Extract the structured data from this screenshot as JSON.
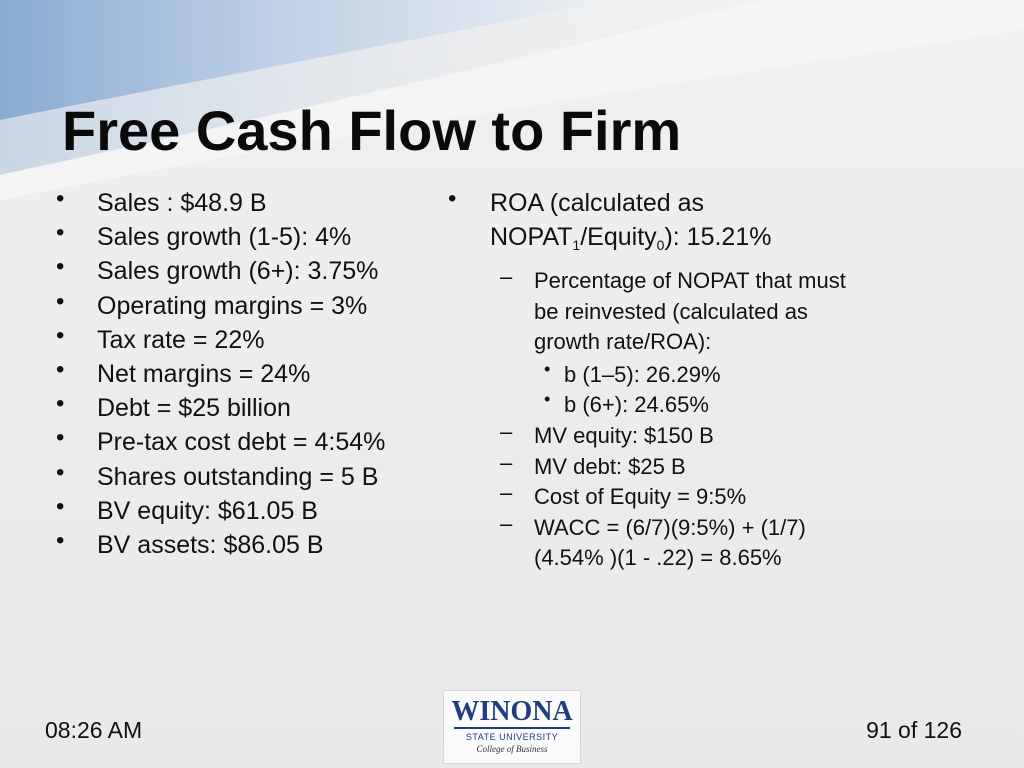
{
  "slide": {
    "title": "Free Cash Flow to Firm"
  },
  "left_bullets": [
    "Sales : $48.9 B",
    "Sales growth (1-5): 4%",
    "Sales growth (6+): 3.75%",
    "Operating margins = 3%",
    "Tax rate = 22%",
    "Net margins = 24%",
    "Debt = $25 billion",
    "Pre-tax cost debt = 4:54%",
    "Shares outstanding = 5 B",
    "BV equity: $61.05 B",
    "BV assets: $86.05 B"
  ],
  "right": {
    "roa_line1": "ROA (calculated as",
    "roa_nopat": "NOPAT",
    "roa_nopat_sub": "1",
    "roa_equity": "/Equity",
    "roa_equity_sub": "0",
    "roa_value": "): 15.21%",
    "reinvest": "Percentage of NOPAT that must be reinvested (calculated as growth rate/ROA):",
    "b_items": [
      "b (1–5): 26.29%",
      "b (6+): 24.65%"
    ],
    "other_items": [
      "MV equity: $150 B",
      "MV debt: $25 B",
      "Cost of Equity = 9:5%",
      "WACC = (6/7)(9:5%) + (1/7)(4.54% )(1 - .22) = 8.65%"
    ]
  },
  "footer": {
    "time": "08:26 AM",
    "page": "91 of 126"
  },
  "logo": {
    "name": "WINONA",
    "subtitle": "STATE UNIVERSITY",
    "college": "College of Business",
    "accent_color": "#1f3d80"
  }
}
